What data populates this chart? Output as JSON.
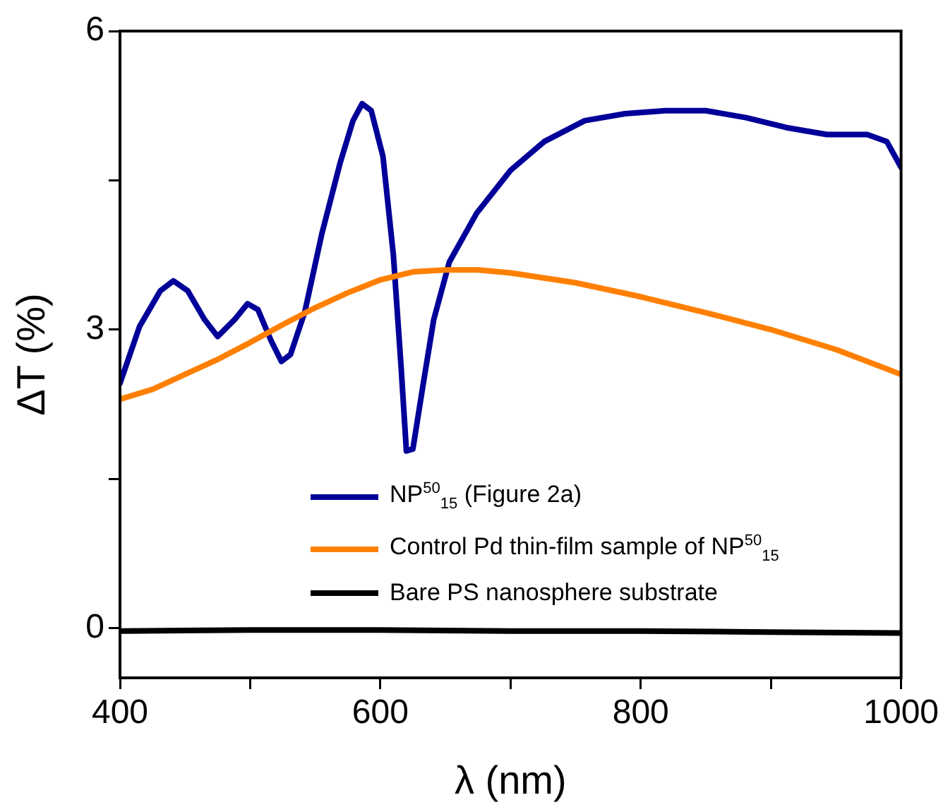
{
  "chart_data": {
    "type": "line",
    "xlabel": "λ (nm)",
    "ylabel": "ΔT (%)",
    "xlim": [
      400,
      1000
    ],
    "xticks": [
      400,
      {
        "value": 500,
        "label": null
      },
      600,
      {
        "value": 700,
        "label": null
      },
      800,
      {
        "value": 900,
        "label": null
      },
      1000
    ],
    "ylim": [
      -0.5,
      6
    ],
    "yticks": [
      0,
      {
        "value": 1.5,
        "label": null
      },
      3,
      {
        "value": 4.5,
        "label": null
      },
      6
    ],
    "grid": false,
    "legend": "bottom right",
    "marker": "none",
    "line_style": "solid",
    "series": [
      {
        "name": "NP$^{50}$$_{15}$ (Figure 2a)",
        "color": "#000099",
        "x": [
          400,
          415,
          431,
          441,
          452,
          465,
          475,
          488,
          498,
          506,
          516,
          524,
          531,
          542,
          555,
          569,
          579,
          586,
          593,
          602,
          610,
          616,
          620,
          625,
          633,
          641,
          653,
          674,
          700,
          726,
          757,
          788,
          819,
          850,
          881,
          912,
          943,
          974,
          989,
          1000
        ],
        "values": [
          2.46,
          3.03,
          3.39,
          3.49,
          3.39,
          3.1,
          2.93,
          3.1,
          3.26,
          3.2,
          2.89,
          2.68,
          2.75,
          3.18,
          3.96,
          4.67,
          5.1,
          5.27,
          5.2,
          4.74,
          3.75,
          2.61,
          1.78,
          1.8,
          2.46,
          3.1,
          3.68,
          4.17,
          4.6,
          4.89,
          5.1,
          5.17,
          5.2,
          5.2,
          5.13,
          5.03,
          4.96,
          4.96,
          4.89,
          4.63
        ]
      },
      {
        "name": "Control Pd thin-film sample of NP$^{50}$$_{15}$",
        "color": "#ff8000",
        "x": [
          400,
          425,
          450,
          475,
          500,
          525,
          550,
          575,
          600,
          625,
          650,
          675,
          700,
          750,
          800,
          850,
          900,
          950,
          1000
        ],
        "values": [
          2.3,
          2.4,
          2.55,
          2.7,
          2.87,
          3.05,
          3.22,
          3.37,
          3.5,
          3.58,
          3.6,
          3.6,
          3.57,
          3.47,
          3.33,
          3.17,
          3.0,
          2.8,
          2.55
        ]
      },
      {
        "name": "Bare PS nanosphere substrate",
        "color": "#000000",
        "x": [
          400,
          500,
          600,
          700,
          800,
          900,
          1000
        ],
        "values": [
          -0.03,
          -0.02,
          -0.02,
          -0.03,
          -0.03,
          -0.04,
          -0.05
        ]
      }
    ]
  }
}
